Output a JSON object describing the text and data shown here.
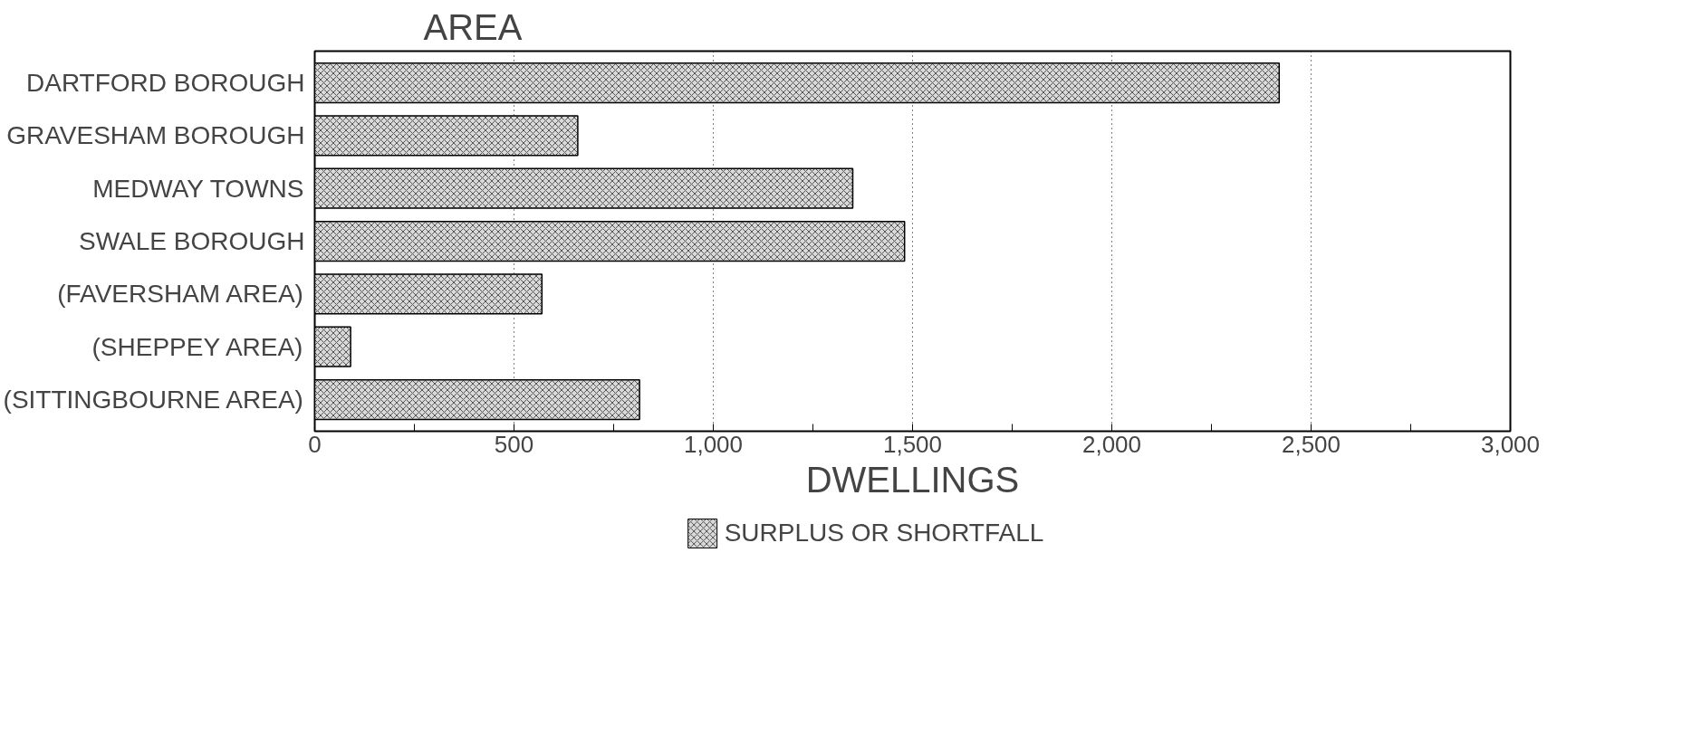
{
  "chart_data": {
    "type": "bar",
    "orientation": "horizontal",
    "ylabel": "AREA",
    "xlabel": "DWELLINGS",
    "categories": [
      "DARTFORD BOROUGH",
      "GRAVESHAM BOROUGH",
      "MEDWAY TOWNS",
      "SWALE BOROUGH",
      "(FAVERSHAM AREA)",
      "(SHEPPEY AREA)",
      "(SITTINGBOURNE AREA)"
    ],
    "series": [
      {
        "name": "SURPLUS OR SHORTFALL",
        "color": "#d9d9d9",
        "values": [
          2420,
          660,
          1350,
          1480,
          570,
          90,
          815
        ]
      }
    ],
    "xlim": [
      0,
      3000
    ],
    "xticks": [
      0,
      {
        "value": 250,
        "label": null
      },
      {
        "value": 500,
        "label": "500"
      },
      {
        "value": 750,
        "label": null
      },
      {
        "value": 1000,
        "label": "1,000"
      },
      {
        "value": 1250,
        "label": null
      },
      {
        "value": 1500,
        "label": "1,500"
      },
      {
        "value": 1750,
        "label": null
      },
      {
        "value": 2000,
        "label": "2,000"
      },
      {
        "value": 2250,
        "label": null
      },
      {
        "value": 2500,
        "label": "2,500"
      },
      {
        "value": 2750,
        "label": null
      },
      {
        "value": 3000,
        "label": "3,000"
      }
    ],
    "grid": "x",
    "legend": "bottom"
  }
}
